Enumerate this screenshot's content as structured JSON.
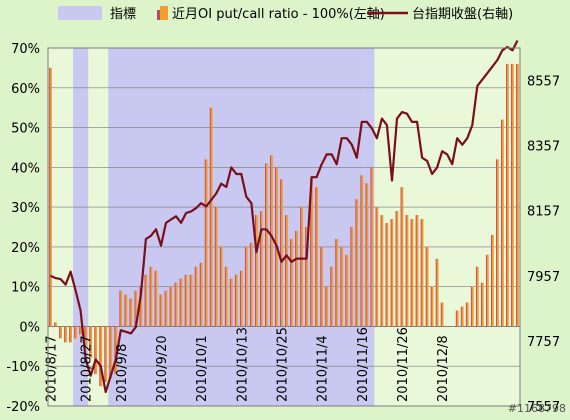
{
  "chart_data": {
    "type": "bar",
    "title": "",
    "legend": {
      "placement": "top",
      "items": [
        {
          "label": "指標",
          "kind": "shade",
          "color": "#c8c8f0"
        },
        {
          "label": "近月OI put/call ratio - 100%(左軸)",
          "kind": "bar",
          "color": "#f39c2f"
        },
        {
          "label": "台指期收盤(右軸)",
          "kind": "line",
          "color": "#7a0e1b"
        }
      ]
    },
    "y_left": {
      "ticks": [
        "70%",
        "60%",
        "50%",
        "40%",
        "30%",
        "20%",
        "10%",
        "0%",
        "-10%",
        "-20%"
      ],
      "ylim": [
        -20,
        70
      ]
    },
    "y_right": {
      "ticks": [
        "8557",
        "8357",
        "8157",
        "7957",
        "7757",
        "7557"
      ],
      "ylim": [
        7557,
        8657
      ]
    },
    "x_ticks": [
      "2010/8/17",
      "2010/8/27",
      "2010/9/8",
      "2010/9/20",
      "2010/10/1",
      "2010/10/13",
      "2010/10/25",
      "2010/11/4",
      "2010/11/16",
      "2010/11/26",
      "2010/12/8"
    ],
    "x_tick_index": [
      0,
      7,
      14,
      22,
      30,
      38,
      46,
      54,
      62,
      70,
      78
    ],
    "shade_spans": [
      [
        5,
        7
      ],
      [
        12,
        62
      ],
      [
        63,
        64
      ]
    ],
    "series": [
      {
        "name": "近月OI put/call ratio - 100%(左軸)",
        "type": "bar",
        "values": [
          65,
          1,
          -3,
          -4,
          -4,
          -3,
          -2,
          -5,
          -8,
          -12,
          -15,
          -14,
          -13,
          -12,
          9,
          8,
          7,
          9,
          10,
          13,
          15,
          14,
          8,
          9,
          10,
          11,
          12,
          13,
          13,
          15,
          16,
          42,
          55,
          30,
          20,
          15,
          12,
          13,
          14,
          20,
          21,
          28,
          29,
          41,
          43,
          40,
          37,
          28,
          22,
          24,
          30,
          25,
          37,
          35,
          20,
          10,
          15,
          22,
          20,
          18,
          25,
          32,
          38,
          36,
          40,
          30,
          28,
          26,
          27,
          29,
          35,
          28,
          27,
          28,
          27,
          20,
          10,
          17,
          6,
          0,
          0,
          4,
          5,
          6,
          10,
          15,
          11,
          18,
          23,
          42,
          52,
          66,
          66,
          66
        ]
      },
      {
        "name": "台指期收盤(右軸)",
        "type": "line",
        "values": [
          7957,
          7950,
          7947,
          7930,
          7970,
          7912,
          7850,
          7700,
          7650,
          7700,
          7680,
          7600,
          7650,
          7700,
          7790,
          7785,
          7780,
          7800,
          7900,
          8070,
          8080,
          8100,
          8050,
          8120,
          8130,
          8140,
          8120,
          8150,
          8155,
          8165,
          8180,
          8170,
          8190,
          8210,
          8240,
          8230,
          8290,
          8270,
          8270,
          8200,
          8180,
          8030,
          8100,
          8100,
          8080,
          8050,
          8000,
          8020,
          8000,
          8010,
          8010,
          8010,
          8260,
          8260,
          8300,
          8330,
          8330,
          8300,
          8380,
          8380,
          8360,
          8320,
          8430,
          8430,
          8410,
          8380,
          8440,
          8420,
          8250,
          8440,
          8460,
          8455,
          8430,
          8430,
          8320,
          8310,
          8270,
          8290,
          8340,
          8330,
          8300,
          8380,
          8360,
          8380,
          8420,
          8540,
          8560,
          8580,
          8600,
          8620,
          8650,
          8660,
          8650,
          8680
        ]
      }
    ]
  },
  "watermark": "#1168798"
}
